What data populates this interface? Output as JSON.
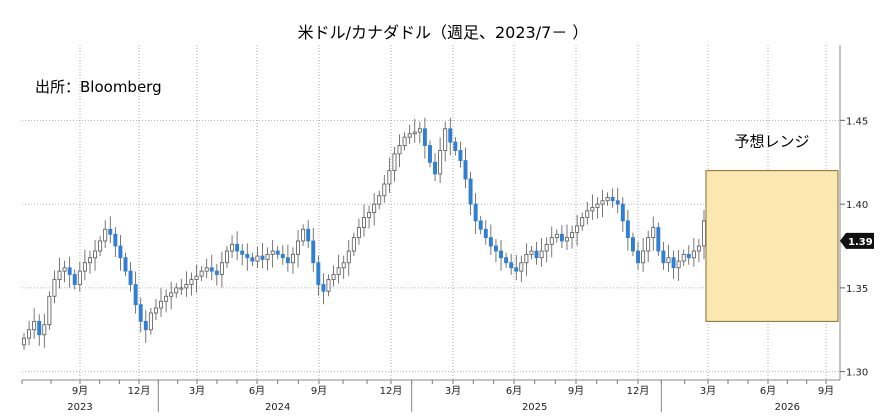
{
  "chart_data": {
    "type": "candlestick",
    "title": "米ドル/カナダドル（週足、2023/7－  ）",
    "source": "出所：Bloomberg",
    "ylim": [
      1.295,
      1.495
    ],
    "y_ticks": [
      "1.30",
      "1.35",
      "1.40",
      "1.45"
    ],
    "x_month_ticks": [
      {
        "date": "2023-09",
        "label": "9月"
      },
      {
        "date": "2023-12",
        "label": "12月"
      },
      {
        "date": "2024-03",
        "label": "3月"
      },
      {
        "date": "2024-06",
        "label": "6月"
      },
      {
        "date": "2024-09",
        "label": "9月"
      },
      {
        "date": "2024-12",
        "label": "12月"
      },
      {
        "date": "2025-03",
        "label": "3月"
      },
      {
        "date": "2025-06",
        "label": "6月"
      },
      {
        "date": "2025-09",
        "label": "9月"
      },
      {
        "date": "2025-12",
        "label": "12月"
      },
      {
        "date": "2026-03",
        "label": "3月"
      },
      {
        "date": "2026-06",
        "label": "6月"
      },
      {
        "date": "2026-09",
        "label": "9月"
      }
    ],
    "x_year_labels": [
      "2023",
      "2024",
      "2025",
      "2026"
    ],
    "last_value": "1.39",
    "forecast_range": {
      "label": "予想レンジ",
      "low": 1.33,
      "high": 1.42,
      "from": "2026-03",
      "to": "2026-09"
    },
    "closes": [
      1.32,
      1.325,
      1.33,
      1.322,
      1.328,
      1.345,
      1.355,
      1.36,
      1.362,
      1.358,
      1.352,
      1.36,
      1.365,
      1.368,
      1.372,
      1.378,
      1.385,
      1.382,
      1.375,
      1.368,
      1.36,
      1.352,
      1.34,
      1.33,
      1.325,
      1.335,
      1.338,
      1.342,
      1.345,
      1.347,
      1.35,
      1.35,
      1.352,
      1.355,
      1.357,
      1.36,
      1.362,
      1.36,
      1.358,
      1.365,
      1.372,
      1.376,
      1.372,
      1.37,
      1.368,
      1.366,
      1.369,
      1.367,
      1.37,
      1.372,
      1.37,
      1.368,
      1.365,
      1.37,
      1.378,
      1.385,
      1.378,
      1.365,
      1.352,
      1.348,
      1.355,
      1.358,
      1.362,
      1.365,
      1.372,
      1.38,
      1.386,
      1.392,
      1.395,
      1.4,
      1.405,
      1.412,
      1.42,
      1.43,
      1.435,
      1.44,
      1.442,
      1.443,
      1.445,
      1.435,
      1.425,
      1.418,
      1.432,
      1.445,
      1.437,
      1.432,
      1.426,
      1.415,
      1.4,
      1.39,
      1.385,
      1.38,
      1.375,
      1.372,
      1.368,
      1.365,
      1.362,
      1.36,
      1.365,
      1.37,
      1.372,
      1.368,
      1.372,
      1.376,
      1.38,
      1.382,
      1.378,
      1.38,
      1.383,
      1.387,
      1.392,
      1.396,
      1.398,
      1.4,
      1.402,
      1.404,
      1.402,
      1.4,
      1.39,
      1.38,
      1.372,
      1.365,
      1.372,
      1.38,
      1.386,
      1.372,
      1.365,
      1.368,
      1.362,
      1.366,
      1.37,
      1.368,
      1.372,
      1.375,
      1.39
    ]
  }
}
